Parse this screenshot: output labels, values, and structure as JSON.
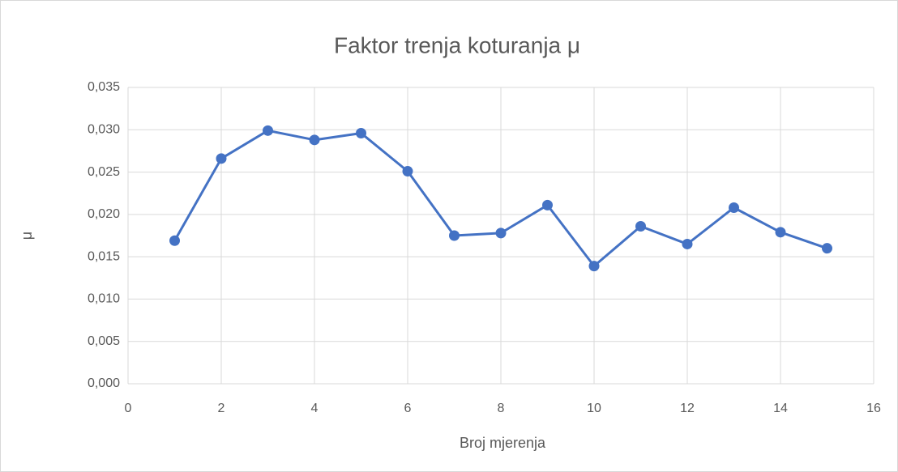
{
  "chart_data": {
    "type": "line",
    "title": "Faktor trenja koturanja μ",
    "xlabel": "Broj mjerenja",
    "ylabel": "μ",
    "x": [
      1,
      2,
      3,
      4,
      5,
      6,
      7,
      8,
      9,
      10,
      11,
      12,
      13,
      14,
      15
    ],
    "series": [
      {
        "color": "#4472c4",
        "values": [
          0.0169,
          0.0266,
          0.0299,
          0.0288,
          0.0296,
          0.0251,
          0.0175,
          0.0178,
          0.0211,
          0.0139,
          0.0186,
          0.0165,
          0.0208,
          0.0179,
          0.016
        ]
      }
    ],
    "xlim": [
      0,
      16
    ],
    "xticks": [
      0,
      2,
      4,
      6,
      8,
      10,
      12,
      14,
      16
    ],
    "ylim": [
      0,
      0.035
    ],
    "yticks": [
      {
        "value": 0,
        "label": "0,000"
      },
      {
        "value": 0.005,
        "label": "0,005"
      },
      {
        "value": 0.01,
        "label": "0,010"
      },
      {
        "value": 0.015,
        "label": "0,015"
      },
      {
        "value": 0.02,
        "label": "0,020"
      },
      {
        "value": 0.025,
        "label": "0,025"
      },
      {
        "value": 0.03,
        "label": "0,030"
      },
      {
        "value": 0.035,
        "label": "0,035"
      }
    ],
    "grid": true
  }
}
